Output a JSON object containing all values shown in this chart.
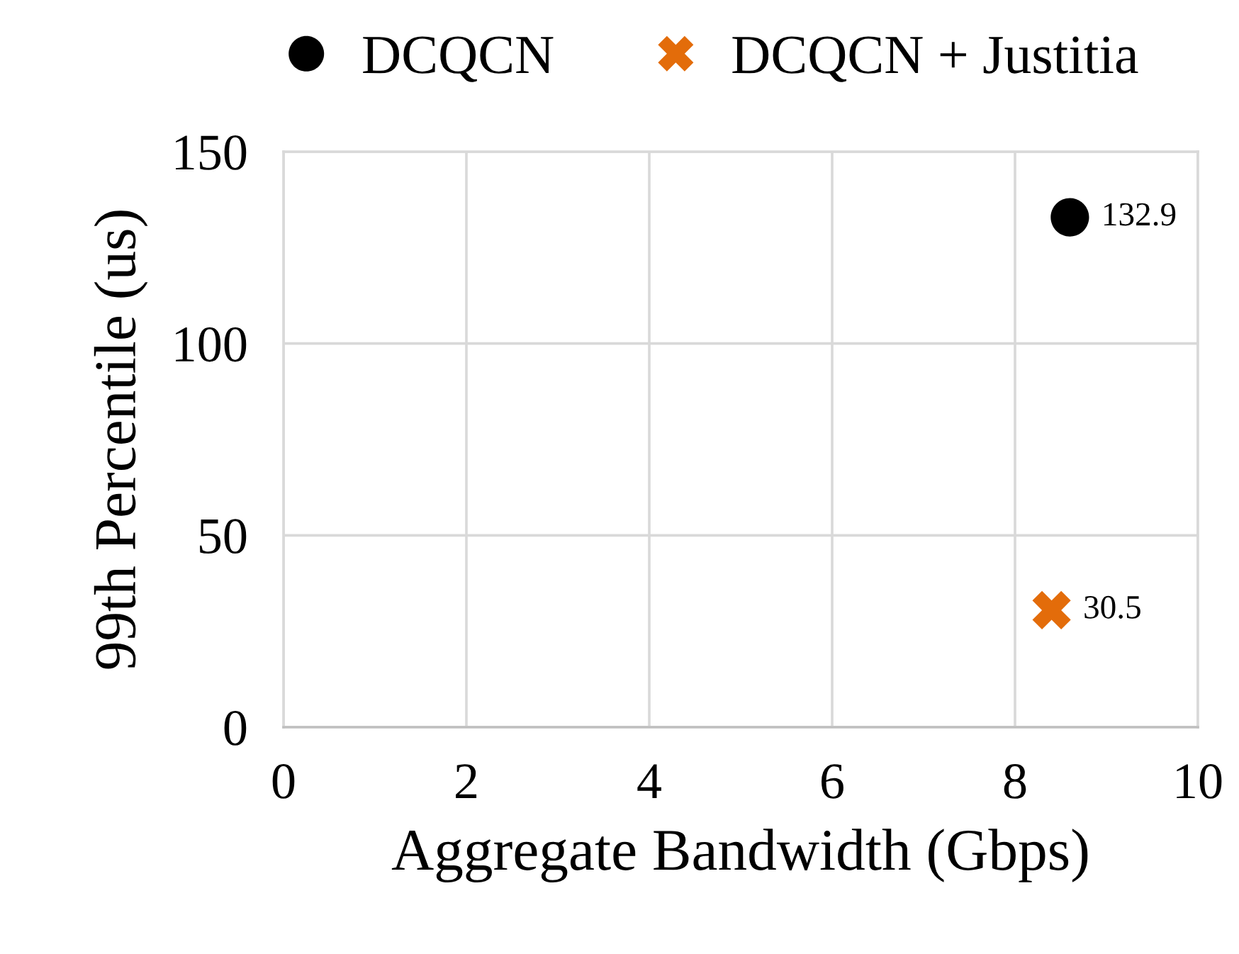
{
  "chart_data": {
    "type": "scatter",
    "xlabel": "Aggregate Bandwidth (Gbps)",
    "ylabel": "99th Percentile (us)",
    "series": [
      {
        "name": "DCQCN",
        "color": "#000000",
        "marker": "circle",
        "x": [
          8.6
        ],
        "values": [
          132.9
        ]
      },
      {
        "name": "DCQCN + Justitia",
        "color": "#e36c0a",
        "marker": "cross",
        "x": [
          8.4
        ],
        "values": [
          30.5
        ]
      }
    ],
    "xlim": [
      0,
      10
    ],
    "xticks": [
      0,
      2,
      4,
      6,
      8,
      10
    ],
    "ylim": [
      0,
      150
    ],
    "yticks": [
      0,
      50,
      100,
      150
    ],
    "grid": true,
    "legend": "top",
    "data_labels": true
  }
}
